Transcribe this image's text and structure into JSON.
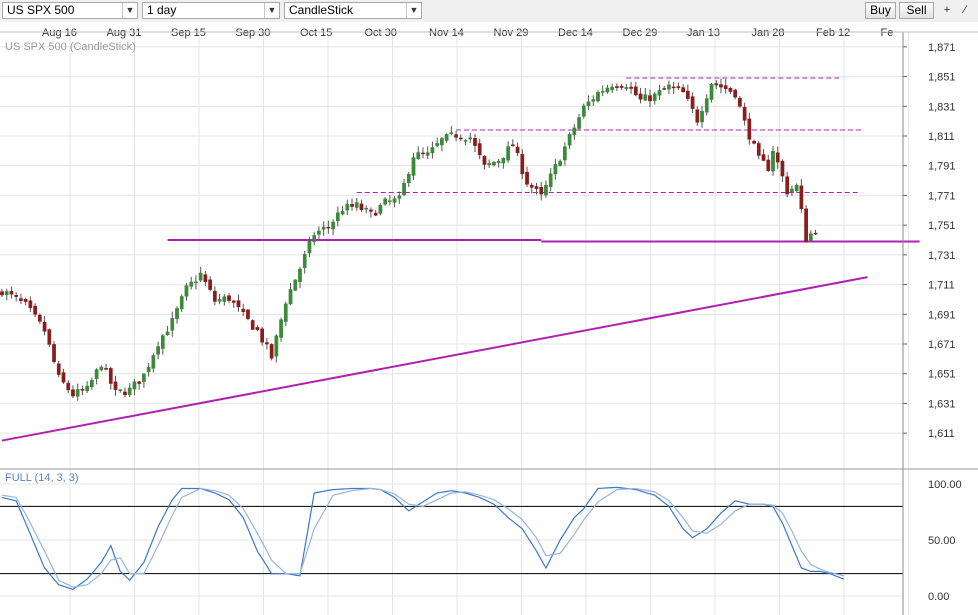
{
  "toolbar": {
    "symbol": "US SPX 500",
    "period": "1 day",
    "chart_type": "CandleStick",
    "buy_label": "Buy",
    "sell_label": "Sell",
    "icons": [
      "crosshair-icon",
      "line-tool-icon"
    ]
  },
  "colors": {
    "up": "#3a8a3a",
    "down": "#8a1c1c",
    "trendline": "#b020b0",
    "stoch_k": "#3c78c8",
    "stoch_d": "#98b4dc",
    "grid": "#e4e4e4"
  },
  "chart_data": [
    {
      "type": "candlestick",
      "title": "US SPX 500 (CandleStick)",
      "x_ticks": [
        "Aug 16",
        "Aug 31",
        "Sep 15",
        "Sep 30",
        "Oct 15",
        "Oct 30",
        "Nov 14",
        "Nov 29",
        "Dec 14",
        "Dec 29",
        "Jan 13",
        "Jan 28",
        "Feb 12",
        "Fe"
      ],
      "y_ticks": [
        "1,871",
        "1,851",
        "1,831",
        "1,811",
        "1,791",
        "1,771",
        "1,751",
        "1,731",
        "1,711",
        "1,691",
        "1,671",
        "1,651",
        "1,631",
        "1,611"
      ],
      "ylim": [
        1601,
        1881
      ],
      "grid": true,
      "waypoints": [
        [
          0,
          1707
        ],
        [
          5,
          1697
        ],
        [
          9,
          1680
        ],
        [
          12,
          1648
        ],
        [
          15,
          1637
        ],
        [
          18,
          1640
        ],
        [
          21,
          1658
        ],
        [
          24,
          1638
        ],
        [
          27,
          1640
        ],
        [
          30,
          1650
        ],
        [
          33,
          1672
        ],
        [
          36,
          1686
        ],
        [
          39,
          1708
        ],
        [
          42,
          1718
        ],
        [
          45,
          1700
        ],
        [
          48,
          1702
        ],
        [
          51,
          1690
        ],
        [
          54,
          1680
        ],
        [
          57,
          1662
        ],
        [
          60,
          1700
        ],
        [
          63,
          1722
        ],
        [
          66,
          1745
        ],
        [
          69,
          1750
        ],
        [
          72,
          1762
        ],
        [
          75,
          1764
        ],
        [
          78,
          1758
        ],
        [
          81,
          1766
        ],
        [
          84,
          1768
        ],
        [
          87,
          1798
        ],
        [
          90,
          1798
        ],
        [
          93,
          1808
        ],
        [
          96,
          1812
        ],
        [
          99,
          1810
        ],
        [
          102,
          1790
        ],
        [
          105,
          1795
        ],
        [
          108,
          1805
        ],
        [
          111,
          1780
        ],
        [
          114,
          1770
        ],
        [
          117,
          1790
        ],
        [
          120,
          1810
        ],
        [
          123,
          1830
        ],
        [
          126,
          1840
        ],
        [
          129,
          1846
        ],
        [
          132,
          1846
        ],
        [
          135,
          1835
        ],
        [
          138,
          1838
        ],
        [
          141,
          1844
        ],
        [
          144,
          1840
        ],
        [
          147,
          1822
        ],
        [
          150,
          1847
        ],
        [
          153,
          1843
        ],
        [
          155,
          1840
        ],
        [
          157,
          1820
        ],
        [
          160,
          1795
        ],
        [
          162,
          1790
        ],
        [
          163,
          1802
        ],
        [
          166,
          1774
        ],
        [
          168,
          1777
        ],
        [
          169,
          1760
        ],
        [
          170,
          1742
        ],
        [
          172,
          1748
        ]
      ],
      "trendlines": [
        {
          "style": "solid",
          "points": [
            [
              0,
              1606
            ],
            [
              183,
              1716
            ]
          ]
        },
        {
          "style": "solid",
          "points": [
            [
              35,
              1741
            ],
            [
              114,
              1741
            ]
          ]
        },
        {
          "style": "solid",
          "points": [
            [
              114,
              1740
            ],
            [
              194,
              1740
            ]
          ]
        },
        {
          "style": "dashed",
          "points": [
            [
              75,
              1773
            ],
            [
              181,
              1773
            ]
          ]
        },
        {
          "style": "dashed",
          "points": [
            [
              96,
              1815
            ],
            [
              182,
              1815
            ]
          ]
        },
        {
          "style": "dashed",
          "points": [
            [
              132,
              1850
            ],
            [
              177,
              1850
            ]
          ]
        }
      ]
    },
    {
      "type": "line",
      "title": "FULL (14, 3, 3)",
      "y_ticks": [
        "100.00",
        "50.00",
        "0.00"
      ],
      "ylim": [
        0,
        100
      ],
      "reference_lines": [
        80,
        20
      ],
      "series": [
        {
          "color": "#3c78c8",
          "waypoints": [
            [
              0,
              88
            ],
            [
              3,
              85
            ],
            [
              6,
              55
            ],
            [
              9,
              25
            ],
            [
              12,
              10
            ],
            [
              15,
              6
            ],
            [
              18,
              15
            ],
            [
              21,
              30
            ],
            [
              23,
              45
            ],
            [
              25,
              22
            ],
            [
              27,
              14
            ],
            [
              30,
              30
            ],
            [
              33,
              62
            ],
            [
              36,
              86
            ],
            [
              38,
              96
            ],
            [
              42,
              96
            ],
            [
              45,
              92
            ],
            [
              48,
              86
            ],
            [
              51,
              70
            ],
            [
              54,
              40
            ],
            [
              57,
              20
            ],
            [
              60,
              20
            ],
            [
              63,
              18
            ],
            [
              66,
              92
            ],
            [
              70,
              95
            ],
            [
              74,
              96
            ],
            [
              78,
              96
            ],
            [
              80,
              95
            ],
            [
              83,
              88
            ],
            [
              86,
              76
            ],
            [
              89,
              84
            ],
            [
              92,
              92
            ],
            [
              95,
              94
            ],
            [
              98,
              92
            ],
            [
              101,
              88
            ],
            [
              104,
              82
            ],
            [
              107,
              70
            ],
            [
              110,
              60
            ],
            [
              113,
              40
            ],
            [
              115,
              25
            ],
            [
              118,
              50
            ],
            [
              121,
              70
            ],
            [
              123,
              78
            ],
            [
              126,
              96
            ],
            [
              130,
              97
            ],
            [
              134,
              95
            ],
            [
              138,
              90
            ],
            [
              141,
              80
            ],
            [
              144,
              60
            ],
            [
              146,
              52
            ],
            [
              149,
              60
            ],
            [
              152,
              74
            ],
            [
              155,
              85
            ],
            [
              158,
              82
            ],
            [
              161,
              82
            ],
            [
              163,
              80
            ],
            [
              165,
              65
            ],
            [
              167,
              45
            ],
            [
              169,
              25
            ],
            [
              171,
              22
            ],
            [
              173,
              22
            ],
            [
              175,
              20
            ],
            [
              178,
              15
            ]
          ]
        },
        {
          "color": "#98b4dc",
          "waypoints": [
            [
              0,
              90
            ],
            [
              3,
              88
            ],
            [
              6,
              65
            ],
            [
              9,
              40
            ],
            [
              12,
              14
            ],
            [
              15,
              8
            ],
            [
              18,
              10
            ],
            [
              21,
              20
            ],
            [
              23,
              32
            ],
            [
              25,
              34
            ],
            [
              27,
              20
            ],
            [
              30,
              20
            ],
            [
              33,
              45
            ],
            [
              36,
              72
            ],
            [
              38,
              88
            ],
            [
              42,
              96
            ],
            [
              45,
              94
            ],
            [
              48,
              90
            ],
            [
              51,
              78
            ],
            [
              54,
              56
            ],
            [
              57,
              32
            ],
            [
              60,
              20
            ],
            [
              63,
              20
            ],
            [
              66,
              60
            ],
            [
              70,
              90
            ],
            [
              74,
              94
            ],
            [
              78,
              96
            ],
            [
              80,
              95
            ],
            [
              83,
              91
            ],
            [
              86,
              82
            ],
            [
              89,
              80
            ],
            [
              92,
              86
            ],
            [
              95,
              92
            ],
            [
              98,
              93
            ],
            [
              101,
              90
            ],
            [
              104,
              86
            ],
            [
              107,
              78
            ],
            [
              110,
              68
            ],
            [
              113,
              52
            ],
            [
              115,
              36
            ],
            [
              118,
              38
            ],
            [
              121,
              55
            ],
            [
              123,
              68
            ],
            [
              126,
              84
            ],
            [
              130,
              95
            ],
            [
              134,
              96
            ],
            [
              138,
              93
            ],
            [
              141,
              85
            ],
            [
              144,
              70
            ],
            [
              146,
              58
            ],
            [
              149,
              56
            ],
            [
              152,
              64
            ],
            [
              155,
              76
            ],
            [
              158,
              82
            ],
            [
              161,
              82
            ],
            [
              163,
              81
            ],
            [
              165,
              74
            ],
            [
              167,
              58
            ],
            [
              169,
              40
            ],
            [
              171,
              28
            ],
            [
              173,
              24
            ],
            [
              175,
              21
            ],
            [
              178,
              18
            ]
          ]
        }
      ]
    }
  ]
}
